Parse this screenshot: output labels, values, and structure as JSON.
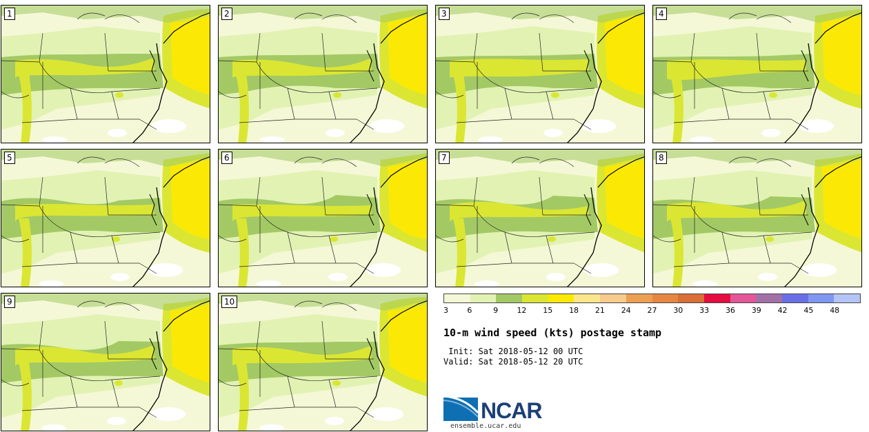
{
  "panels": [
    {
      "label": "1"
    },
    {
      "label": "2"
    },
    {
      "label": "3"
    },
    {
      "label": "4"
    },
    {
      "label": "5"
    },
    {
      "label": "6"
    },
    {
      "label": "7"
    },
    {
      "label": "8"
    },
    {
      "label": "9"
    },
    {
      "label": "10"
    }
  ],
  "legend": {
    "ticks": [
      "3",
      "6",
      "9",
      "12",
      "15",
      "18",
      "21",
      "24",
      "27",
      "30",
      "33",
      "36",
      "39",
      "42",
      "45",
      "48"
    ],
    "colors": [
      "#f4f8d6",
      "#e2f2b3",
      "#a3c965",
      "#dbe633",
      "#fbe905",
      "#fbe68b",
      "#f6cb8c",
      "#ec9f50",
      "#e78642",
      "#d96e37",
      "#e50c3f",
      "#e45697",
      "#a270a7",
      "#6a6fe7",
      "#7f97f2",
      "#b5c4f6"
    ]
  },
  "title": "10-m wind speed (kts) postage stamp",
  "init_line": " Init: Sat 2018-05-12 00 UTC",
  "valid_line": "Valid: Sat 2018-05-12 20 UTC",
  "logo_text": "NCAR",
  "site": "ensemble.ucar.edu"
}
